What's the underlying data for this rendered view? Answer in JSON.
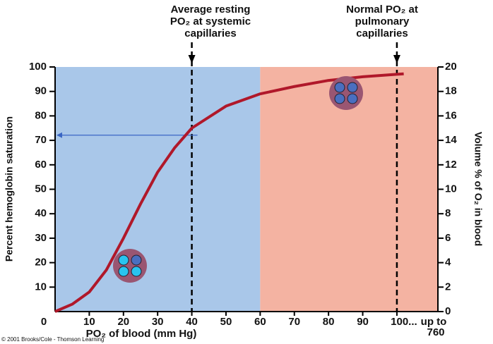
{
  "chart_data": {
    "type": "line",
    "x": [
      0,
      5,
      10,
      15,
      20,
      25,
      30,
      35,
      40,
      50,
      60,
      70,
      80,
      90,
      100,
      102
    ],
    "values": [
      0,
      3,
      8,
      17,
      30,
      44,
      57,
      67,
      75,
      84,
      89,
      92,
      94.5,
      96,
      97,
      97.2
    ],
    "color": "#b0182a",
    "xlim": [
      0,
      112
    ],
    "ylim": [
      0,
      100
    ],
    "y2lim": [
      0,
      20
    ],
    "xticks": [
      0,
      10,
      20,
      30,
      40,
      50,
      60,
      70,
      80,
      90,
      {
        "value": 100,
        "label": "100..."
      }
    ],
    "xtick_extra": [
      "up to",
      "760"
    ],
    "yticks": [
      10,
      20,
      30,
      40,
      50,
      60,
      70,
      80,
      90,
      100
    ],
    "y2ticks": [
      0,
      2,
      4,
      6,
      8,
      10,
      12,
      14,
      16,
      18,
      20
    ],
    "xlabel": "PO₂ of blood (mm Hg)",
    "ylabel": "Percent hemoglobin saturation",
    "y2label": "Volume % of O₂ in blood",
    "regions": [
      {
        "from": 0,
        "color": "#a9c7e9"
      },
      {
        "from": 60,
        "color": "#f4b3a2"
      }
    ],
    "markers": [
      {
        "x": 40,
        "color": "#2d5ea8",
        "label": [
          "Average resting",
          "PO₂ at systemic",
          "capillaries"
        ]
      },
      {
        "x": 100,
        "color": "#d6143c",
        "label": [
          "Normal PO₂ at",
          "pulmonary",
          "capillaries"
        ]
      }
    ],
    "arrow": {
      "y": 75,
      "from": 40,
      "to": 0,
      "color": "#3a66c4"
    },
    "credit": "© 2001 Brooks/Cole - Thomson Learning"
  }
}
